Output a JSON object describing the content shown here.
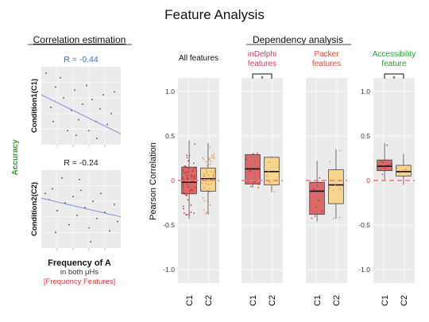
{
  "title": "Feature Analysis",
  "correlation": {
    "heading": "Correlation estimation",
    "side_label": "Accuracy",
    "panels": [
      {
        "r_label": "R = -0.44",
        "ylabel": "Condition1(C1)",
        "points": [
          [
            0.06,
            0.92
          ],
          [
            0.12,
            0.48
          ],
          [
            0.18,
            0.74
          ],
          [
            0.24,
            0.86
          ],
          [
            0.28,
            0.6
          ],
          [
            0.33,
            0.18
          ],
          [
            0.38,
            0.44
          ],
          [
            0.42,
            0.7
          ],
          [
            0.47,
            0.32
          ],
          [
            0.52,
            0.52
          ],
          [
            0.57,
            0.76
          ],
          [
            0.6,
            0.18
          ],
          [
            0.64,
            0.58
          ],
          [
            0.69,
            0.3
          ],
          [
            0.74,
            0.46
          ],
          [
            0.78,
            0.64
          ],
          [
            0.83,
            0.26
          ],
          [
            0.88,
            0.4
          ],
          [
            0.92,
            0.68
          ],
          [
            0.15,
            0.3
          ],
          [
            0.44,
            0.12
          ],
          [
            0.7,
            0.08
          ]
        ],
        "fit": [
          [
            0.0,
            0.64
          ],
          [
            1.0,
            0.14
          ]
        ]
      },
      {
        "r_label": "R = -0.24",
        "ylabel": "Condition2(C2)",
        "points": [
          [
            0.05,
            0.7
          ],
          [
            0.1,
            0.62
          ],
          [
            0.14,
            0.76
          ],
          [
            0.2,
            0.48
          ],
          [
            0.26,
            0.9
          ],
          [
            0.3,
            0.58
          ],
          [
            0.35,
            0.3
          ],
          [
            0.4,
            0.66
          ],
          [
            0.45,
            0.42
          ],
          [
            0.5,
            0.74
          ],
          [
            0.55,
            0.52
          ],
          [
            0.6,
            0.26
          ],
          [
            0.65,
            0.6
          ],
          [
            0.7,
            0.38
          ],
          [
            0.75,
            0.7
          ],
          [
            0.8,
            0.46
          ],
          [
            0.86,
            0.22
          ],
          [
            0.92,
            0.56
          ],
          [
            0.96,
            0.34
          ],
          [
            0.18,
            0.2
          ],
          [
            0.48,
            0.88
          ],
          [
            0.62,
            0.08
          ]
        ],
        "fit": [
          [
            0.0,
            0.64
          ],
          [
            1.0,
            0.4
          ]
        ]
      }
    ],
    "xlabel": "Frequency of A",
    "xlabel2": "in both μHs",
    "xlabel3": "[Frequency Features]"
  },
  "dependency": {
    "heading": "Dependency  analysis",
    "ylabel": "Pearson Correlation",
    "zero_label": "0",
    "sig_marker": "*"
  },
  "colors": {
    "panel_bg": "#ebebeb",
    "grid": "#ffffff",
    "c1_box": "#d9686a",
    "c2_box": "#f6d58e",
    "c1_dot": "#b22222",
    "c2_dot": "#e08a3c",
    "zero_line": "#f08080",
    "fit_line": "#7a8ee6",
    "r_blue": "#3a78c0",
    "indelphi": "#d9385a",
    "packer": "#e24a33",
    "accessibility": "#22a033",
    "accuracy": "#2e9e2e",
    "freq_red": "#d04040"
  },
  "chart_data": [
    {
      "type": "box",
      "title": "All features",
      "title_color": "#111111",
      "categories": [
        "C1",
        "C2"
      ],
      "ylim": [
        -1.15,
        1.15
      ],
      "yticks": [
        -1.0,
        -0.5,
        0,
        0.5,
        1.0
      ],
      "show_ytick_labels": true,
      "significance": false,
      "boxes": [
        {
          "name": "C1",
          "q1": -0.15,
          "median": -0.02,
          "q3": 0.15,
          "low": -0.43,
          "high": 0.45
        },
        {
          "name": "C2",
          "q1": -0.12,
          "median": 0.02,
          "q3": 0.14,
          "low": -0.38,
          "high": 0.42
        }
      ]
    },
    {
      "type": "box",
      "title": "inDelphi features",
      "title_color": "#d9385a",
      "categories": [
        "C1",
        "C2"
      ],
      "ylim": [
        -1.15,
        1.15
      ],
      "yticks": [
        -1.0,
        -0.5,
        0,
        0.5,
        1.0
      ],
      "show_ytick_labels": false,
      "significance": true,
      "boxes": [
        {
          "name": "C1",
          "q1": -0.04,
          "median": 0.13,
          "q3": 0.29,
          "low": -0.08,
          "high": 0.31
        },
        {
          "name": "C2",
          "q1": -0.05,
          "median": 0.1,
          "q3": 0.26,
          "low": -0.13,
          "high": 0.27
        }
      ]
    },
    {
      "type": "box",
      "title": "Packer features",
      "title_color": "#e24a33",
      "categories": [
        "C1",
        "C2"
      ],
      "ylim": [
        -1.15,
        1.15
      ],
      "yticks": [
        -1.0,
        -0.5,
        0,
        0.5,
        1.0
      ],
      "show_ytick_labels": false,
      "significance": false,
      "boxes": [
        {
          "name": "C1",
          "q1": -0.38,
          "median": -0.12,
          "q3": -0.02,
          "low": -0.46,
          "high": 0.22
        },
        {
          "name": "C2",
          "q1": -0.26,
          "median": -0.05,
          "q3": 0.12,
          "low": -0.43,
          "high": 0.35
        }
      ]
    },
    {
      "type": "box",
      "title": "Accessibility feature",
      "title_color": "#22a033",
      "categories": [
        "C1",
        "C2"
      ],
      "ylim": [
        -1.15,
        1.15
      ],
      "yticks": [
        -1.0,
        -0.5,
        0,
        0.5,
        1.0
      ],
      "show_ytick_labels": true,
      "significance": true,
      "boxes": [
        {
          "name": "C1",
          "q1": 0.11,
          "median": 0.16,
          "q3": 0.23,
          "low": 0.0,
          "high": 0.42
        },
        {
          "name": "C2",
          "q1": 0.05,
          "median": 0.1,
          "q3": 0.17,
          "low": -0.05,
          "high": 0.3
        }
      ]
    }
  ]
}
